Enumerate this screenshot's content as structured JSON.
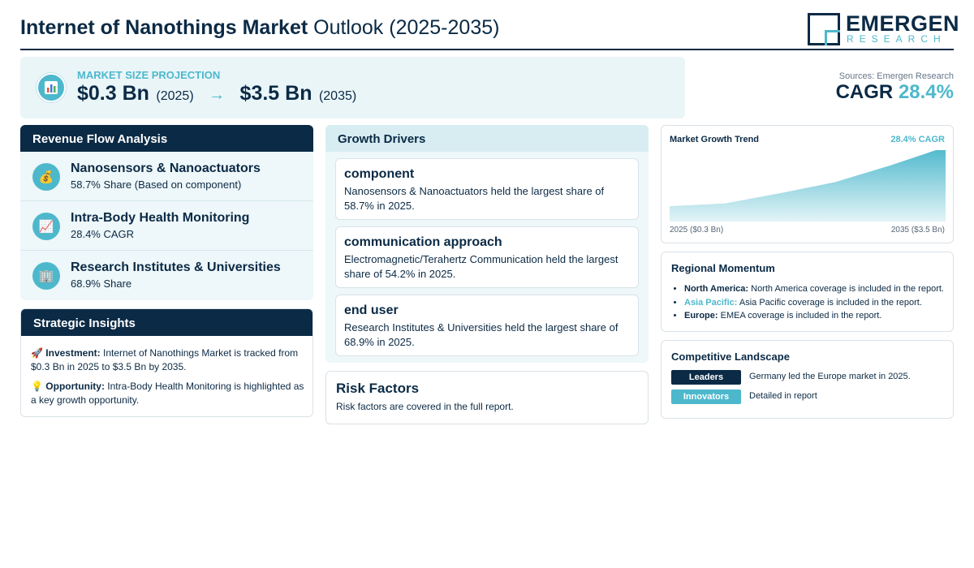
{
  "header": {
    "title_bold": "Internet of Nanothings Market",
    "title_rest": "Outlook (2025-2035)",
    "logo_main": "EMERGEN",
    "logo_sub": "RESEARCH"
  },
  "projection": {
    "label": "MARKET SIZE PROJECTION",
    "start_value": "$0.3 Bn",
    "start_year": "(2025)",
    "arrow": "→",
    "end_value": "$3.5 Bn",
    "end_year": "(2035)",
    "icon": "bar-chart-icon"
  },
  "summary": {
    "sources": "Sources: Emergen Research",
    "cagr_label": "CAGR",
    "cagr_value": "28.4%"
  },
  "revenue_flow": {
    "title": "Revenue Flow Analysis",
    "items": [
      {
        "icon": "money-bag-icon",
        "glyph": "💰",
        "title": "Nanosensors & Nanoactuators",
        "subtitle": "58.7% Share (Based on component)"
      },
      {
        "icon": "trend-up-chart-icon",
        "glyph": "📈",
        "title": "Intra-Body Health Monitoring",
        "subtitle": "28.4% CAGR"
      },
      {
        "icon": "office-building-icon",
        "glyph": "🏢",
        "title": "Research Institutes & Universities",
        "subtitle": "68.9% Share"
      }
    ]
  },
  "strategic_insights": {
    "title": "Strategic Insights",
    "items": [
      {
        "icon": "rocket-icon",
        "glyph": "🚀",
        "label": "Investment:",
        "text": "Internet of Nanothings Market is tracked from $0.3 Bn in 2025 to $3.5 Bn by 2035."
      },
      {
        "icon": "light-bulb-icon",
        "glyph": "💡",
        "label": "Opportunity:",
        "text": "Intra-Body Health Monitoring is highlighted as a key growth opportunity."
      }
    ]
  },
  "growth_drivers": {
    "title": "Growth Drivers",
    "items": [
      {
        "title": "component",
        "text": "Nanosensors & Nanoactuators held the largest share of 58.7% in 2025."
      },
      {
        "title": "communication approach",
        "text": "Electromagnetic/Terahertz Communication held the largest share of 54.2% in 2025."
      },
      {
        "title": "end user",
        "text": "Research Institutes & Universities held the largest share of 68.9% in 2025."
      }
    ]
  },
  "risk_factors": {
    "title": "Risk Factors",
    "text": "Risk factors are covered in the full report."
  },
  "chart_data": {
    "type": "area",
    "title": "Market Growth Trend",
    "annotation": "28.4% CAGR",
    "x": [
      2025,
      2027,
      2029,
      2031,
      2033,
      2035
    ],
    "values": [
      0.3,
      0.45,
      1.0,
      1.6,
      2.5,
      3.5
    ],
    "x_start_label": "2025 ($0.3 Bn)",
    "x_end_label": "2035 ($3.5 Bn)",
    "ylim": [
      0,
      3.5
    ],
    "grid": false,
    "colors": {
      "top": "#4db8cc",
      "bottom": "#e3f4f7"
    }
  },
  "regional_momentum": {
    "title": "Regional Momentum",
    "items": [
      {
        "name": "North America:",
        "text": "North America coverage is included in the report.",
        "accent": false
      },
      {
        "name": "Asia Pacific:",
        "text": "Asia Pacific coverage is included in the report.",
        "accent": true
      },
      {
        "name": "Europe:",
        "text": "EMEA coverage is included in the report.",
        "accent": false
      }
    ]
  },
  "competitive_landscape": {
    "title": "Competitive Landscape",
    "rows": [
      {
        "badge": "Leaders",
        "text": "Germany led the Europe market in 2025.",
        "color": "#0b2a45"
      },
      {
        "badge": "Innovators",
        "text": "Detailed in report",
        "color": "#4db8cc"
      }
    ]
  },
  "colors": {
    "navy": "#0b2a45",
    "accent": "#4db8cc",
    "panel_bg": "#eef7f9"
  }
}
